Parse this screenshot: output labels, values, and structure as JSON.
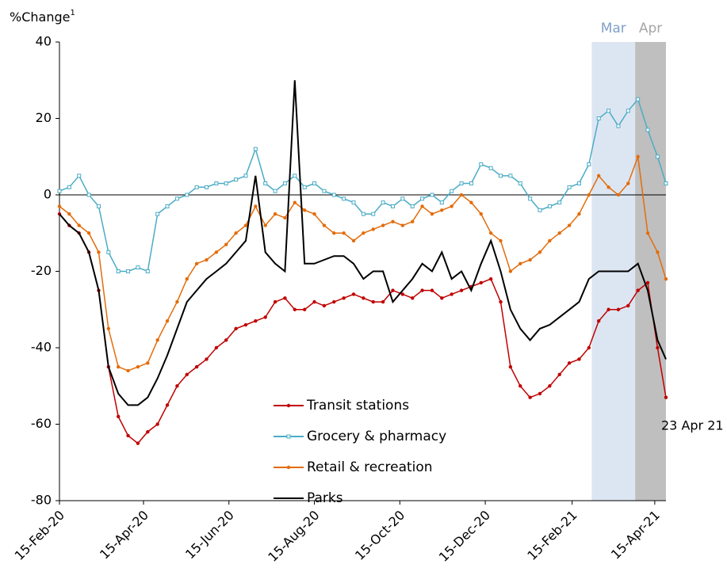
{
  "chart_data": {
    "type": "line",
    "y_label": "%Change",
    "y_label_footnote": "1",
    "x": [
      "2020-02-15",
      "2020-02-22",
      "2020-02-29",
      "2020-03-07",
      "2020-03-14",
      "2020-03-21",
      "2020-03-28",
      "2020-04-04",
      "2020-04-11",
      "2020-04-18",
      "2020-04-25",
      "2020-05-02",
      "2020-05-09",
      "2020-05-16",
      "2020-05-23",
      "2020-05-30",
      "2020-06-06",
      "2020-06-13",
      "2020-06-20",
      "2020-06-27",
      "2020-07-04",
      "2020-07-11",
      "2020-07-18",
      "2020-07-25",
      "2020-08-01",
      "2020-08-08",
      "2020-08-15",
      "2020-08-22",
      "2020-08-29",
      "2020-09-05",
      "2020-09-12",
      "2020-09-19",
      "2020-09-26",
      "2020-10-03",
      "2020-10-10",
      "2020-10-17",
      "2020-10-24",
      "2020-10-31",
      "2020-11-07",
      "2020-11-14",
      "2020-11-21",
      "2020-11-28",
      "2020-12-05",
      "2020-12-12",
      "2020-12-19",
      "2020-12-26",
      "2021-01-02",
      "2021-01-09",
      "2021-01-16",
      "2021-01-23",
      "2021-01-30",
      "2021-02-06",
      "2021-02-13",
      "2021-02-20",
      "2021-02-27",
      "2021-03-06",
      "2021-03-13",
      "2021-03-20",
      "2021-03-27",
      "2021-04-03",
      "2021-04-10",
      "2021-04-17",
      "2021-04-23"
    ],
    "series": [
      {
        "name": "Transit stations",
        "color": "#c00000",
        "marker": "dot",
        "values": [
          -5,
          -8,
          -10,
          -15,
          -25,
          -45,
          -58,
          -63,
          -65,
          -62,
          -60,
          -55,
          -50,
          -47,
          -45,
          -43,
          -40,
          -38,
          -35,
          -34,
          -33,
          -32,
          -28,
          -27,
          -30,
          -30,
          -28,
          -29,
          -28,
          -27,
          -26,
          -27,
          -28,
          -28,
          -25,
          -26,
          -27,
          -25,
          -25,
          -27,
          -26,
          -25,
          -24,
          -23,
          -22,
          -28,
          -45,
          -50,
          -53,
          -52,
          -50,
          -47,
          -44,
          -43,
          -40,
          -33,
          -30,
          -30,
          -29,
          -25,
          -23,
          -40,
          -53
        ]
      },
      {
        "name": "Grocery & pharmacy",
        "color": "#4bacc6",
        "marker": "square",
        "values": [
          1,
          2,
          5,
          0,
          -3,
          -15,
          -20,
          -20,
          -19,
          -20,
          -5,
          -3,
          -1,
          0,
          2,
          2,
          3,
          3,
          4,
          5,
          12,
          3,
          1,
          3,
          5,
          2,
          3,
          1,
          0,
          -1,
          -2,
          -5,
          -5,
          -2,
          -3,
          -1,
          -3,
          -1,
          0,
          -2,
          1,
          3,
          3,
          8,
          7,
          5,
          5,
          3,
          -1,
          -4,
          -3,
          -2,
          2,
          3,
          8,
          20,
          22,
          18,
          22,
          25,
          17,
          10,
          3
        ]
      },
      {
        "name": "Retail & recreation",
        "color": "#e46c0a",
        "marker": "dot",
        "values": [
          -3,
          -5,
          -8,
          -10,
          -15,
          -35,
          -45,
          -46,
          -45,
          -44,
          -38,
          -33,
          -28,
          -22,
          -18,
          -17,
          -15,
          -13,
          -10,
          -8,
          -3,
          -8,
          -5,
          -6,
          -2,
          -4,
          -5,
          -8,
          -10,
          -10,
          -12,
          -10,
          -9,
          -8,
          -7,
          -8,
          -7,
          -3,
          -5,
          -4,
          -3,
          0,
          -2,
          -5,
          -10,
          -12,
          -20,
          -18,
          -17,
          -15,
          -12,
          -10,
          -8,
          -5,
          0,
          5,
          2,
          0,
          3,
          10,
          -10,
          -15,
          -22
        ]
      },
      {
        "name": "Parks",
        "color": "#000000",
        "marker": "none",
        "values": [
          -5,
          -8,
          -10,
          -15,
          -25,
          -45,
          -52,
          -55,
          -55,
          -53,
          -48,
          -42,
          -35,
          -28,
          -25,
          -22,
          -20,
          -18,
          -15,
          -12,
          5,
          -15,
          -18,
          -20,
          30,
          -18,
          -18,
          -17,
          -16,
          -16,
          -18,
          -22,
          -20,
          -20,
          -28,
          -25,
          -22,
          -18,
          -20,
          -15,
          -22,
          -20,
          -25,
          -18,
          -12,
          -20,
          -30,
          -35,
          -38,
          -35,
          -34,
          -32,
          -30,
          -28,
          -22,
          -20,
          -20,
          -20,
          -20,
          -18,
          -25,
          -38,
          -43
        ]
      }
    ],
    "xlim": [
      "2020-02-15",
      "2021-04-23"
    ],
    "xticks": [
      {
        "value": "2020-02-15",
        "label": "15-Feb-20"
      },
      {
        "value": "2020-04-15",
        "label": "15-Apr-20"
      },
      {
        "value": "2020-06-15",
        "label": "15-Jun-20"
      },
      {
        "value": "2020-08-15",
        "label": "15-Aug-20"
      },
      {
        "value": "2020-10-15",
        "label": "15-Oct-20"
      },
      {
        "value": "2020-12-15",
        "label": "15-Dec-20"
      },
      {
        "value": "2021-02-15",
        "label": "15-Feb-21"
      },
      {
        "value": "2021-04-15",
        "label": "15-Apr-21"
      }
    ],
    "ylim": [
      -80,
      40
    ],
    "yticks": [
      -80,
      -60,
      -40,
      -20,
      0,
      20,
      40
    ],
    "shaded_regions": [
      {
        "label": "Mar",
        "start": "2021-03-01",
        "end": "2021-04-01",
        "color": "#dce6f2",
        "label_color": "#7f9fc9"
      },
      {
        "label": "Apr",
        "start": "2021-04-01",
        "end": "2021-04-23",
        "color": "#bfbfbf",
        "label_color": "#a6a6a6"
      }
    ],
    "end_annotation": "23 Apr 21",
    "legend_position": "lower-center",
    "grid": false
  }
}
